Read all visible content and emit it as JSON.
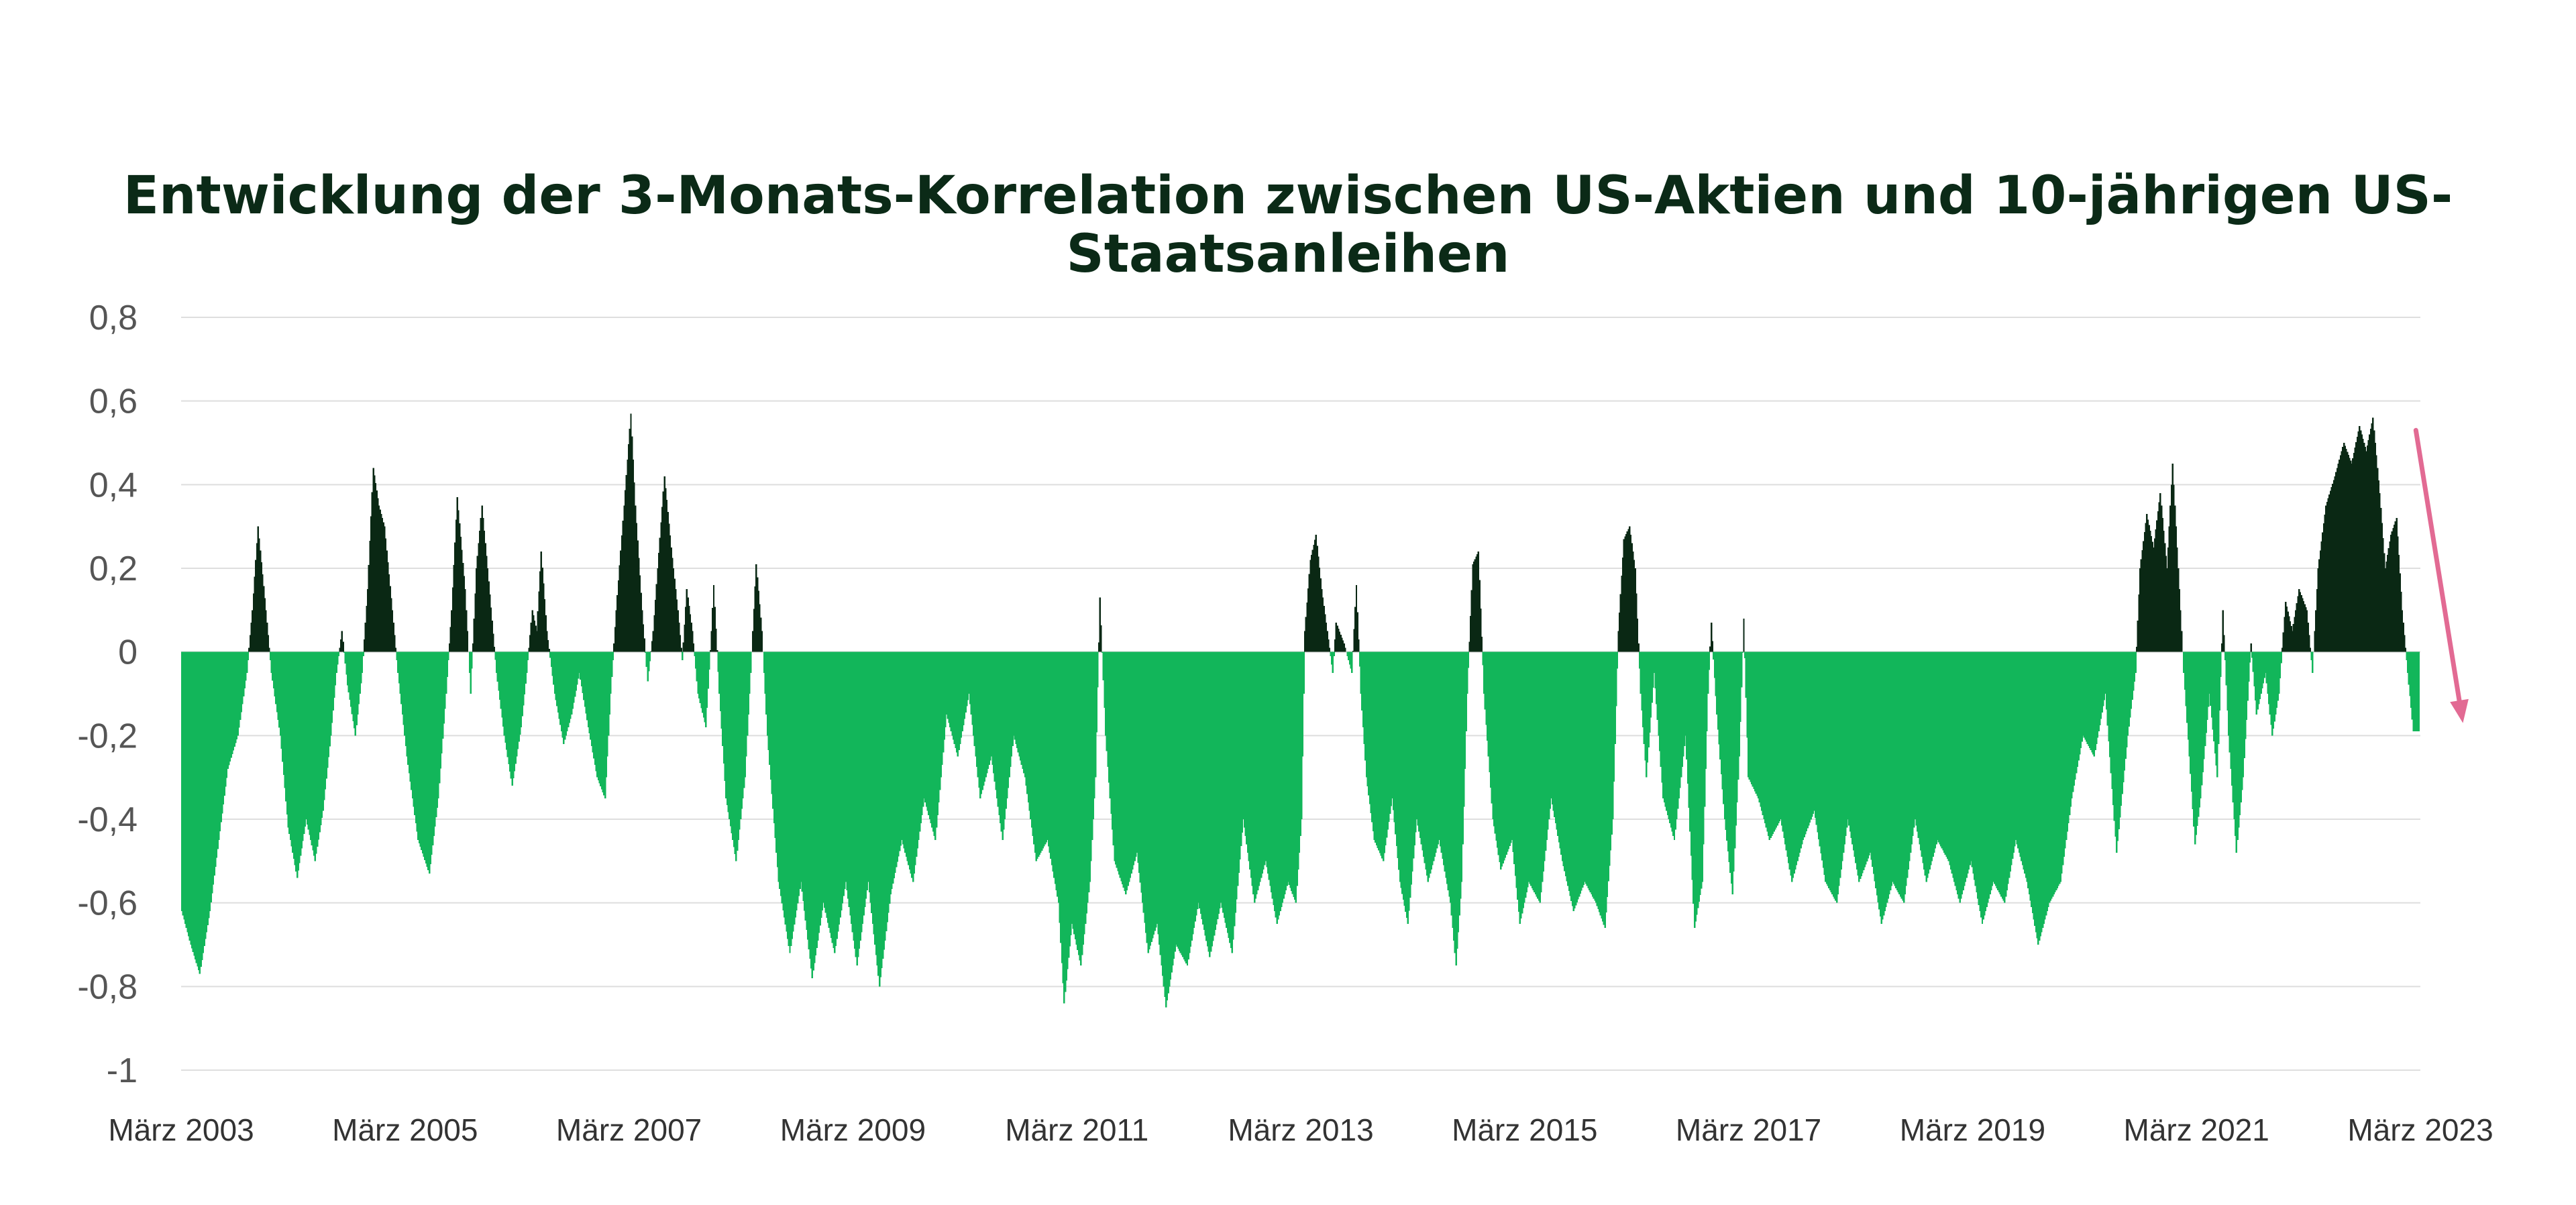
{
  "chart_data": {
    "type": "bar",
    "title_lines": [
      "Entwicklung der 3-Monats-Korrelation zwischen US-Aktien und 10-jährigen US-",
      "Staatsanleihen"
    ],
    "xlabel": "",
    "ylabel": "",
    "ylim": [
      -1,
      0.8
    ],
    "yticks": [
      0.8,
      0.6,
      0.4,
      0.2,
      0,
      -0.2,
      -0.4,
      -0.6,
      -0.8,
      -1
    ],
    "ytick_labels": [
      "0,8",
      "0,6",
      "0,4",
      "0,2",
      "0",
      "-0,2",
      "-0,4",
      "-0,6",
      "-0,8",
      "-1"
    ],
    "x_range": [
      2003.17,
      2023.17
    ],
    "xticks": [
      2003.17,
      2005.17,
      2007.17,
      2009.17,
      2011.17,
      2013.17,
      2015.17,
      2017.17,
      2019.17,
      2021.17,
      2023.17
    ],
    "xtick_labels": [
      "März 2003",
      "März 2005",
      "März 2007",
      "März 2009",
      "März 2011",
      "März 2013",
      "März 2015",
      "März 2017",
      "März 2019",
      "März 2021",
      "März 2023"
    ],
    "grid": true,
    "colors": {
      "positive": "#0a2814",
      "negative": "#12b65a",
      "arrow": "#e26a93"
    },
    "arrow": {
      "from": [
        2023.13,
        0.53
      ],
      "to": [
        2023.55,
        -0.17
      ]
    },
    "series": [
      {
        "points": [
          [
            2003.17,
            -0.62
          ],
          [
            2003.25,
            -0.7
          ],
          [
            2003.33,
            -0.77
          ],
          [
            2003.42,
            -0.62
          ],
          [
            2003.5,
            -0.45
          ],
          [
            2003.58,
            -0.28
          ],
          [
            2003.67,
            -0.2
          ],
          [
            2003.75,
            -0.05
          ],
          [
            2003.8,
            0.1
          ],
          [
            2003.85,
            0.3
          ],
          [
            2003.92,
            0.1
          ],
          [
            2003.97,
            -0.05
          ],
          [
            2004.05,
            -0.2
          ],
          [
            2004.12,
            -0.42
          ],
          [
            2004.2,
            -0.54
          ],
          [
            2004.28,
            -0.4
          ],
          [
            2004.36,
            -0.5
          ],
          [
            2004.43,
            -0.38
          ],
          [
            2004.5,
            -0.2
          ],
          [
            2004.55,
            -0.05
          ],
          [
            2004.6,
            0.05
          ],
          [
            2004.65,
            -0.08
          ],
          [
            2004.72,
            -0.2
          ],
          [
            2004.78,
            -0.05
          ],
          [
            2004.83,
            0.15
          ],
          [
            2004.88,
            0.44
          ],
          [
            2004.93,
            0.35
          ],
          [
            2004.98,
            0.3
          ],
          [
            2005.05,
            0.1
          ],
          [
            2005.1,
            -0.05
          ],
          [
            2005.18,
            -0.25
          ],
          [
            2005.28,
            -0.45
          ],
          [
            2005.38,
            -0.53
          ],
          [
            2005.46,
            -0.35
          ],
          [
            2005.53,
            -0.1
          ],
          [
            2005.58,
            0.1
          ],
          [
            2005.63,
            0.37
          ],
          [
            2005.7,
            0.15
          ],
          [
            2005.75,
            -0.1
          ],
          [
            2005.8,
            0.2
          ],
          [
            2005.85,
            0.35
          ],
          [
            2005.9,
            0.2
          ],
          [
            2005.98,
            -0.05
          ],
          [
            2006.05,
            -0.2
          ],
          [
            2006.12,
            -0.32
          ],
          [
            2006.2,
            -0.18
          ],
          [
            2006.25,
            -0.05
          ],
          [
            2006.3,
            0.1
          ],
          [
            2006.34,
            0.05
          ],
          [
            2006.38,
            0.24
          ],
          [
            2006.43,
            0.05
          ],
          [
            2006.5,
            -0.1
          ],
          [
            2006.58,
            -0.22
          ],
          [
            2006.65,
            -0.15
          ],
          [
            2006.72,
            -0.05
          ],
          [
            2006.8,
            -0.18
          ],
          [
            2006.88,
            -0.3
          ],
          [
            2006.95,
            -0.35
          ],
          [
            2007.0,
            -0.1
          ],
          [
            2007.05,
            0.1
          ],
          [
            2007.12,
            0.35
          ],
          [
            2007.18,
            0.57
          ],
          [
            2007.22,
            0.35
          ],
          [
            2007.28,
            0.1
          ],
          [
            2007.33,
            -0.07
          ],
          [
            2007.38,
            0.05
          ],
          [
            2007.42,
            0.2
          ],
          [
            2007.48,
            0.42
          ],
          [
            2007.54,
            0.25
          ],
          [
            2007.6,
            0.1
          ],
          [
            2007.64,
            -0.02
          ],
          [
            2007.68,
            0.15
          ],
          [
            2007.73,
            0.05
          ],
          [
            2007.78,
            -0.1
          ],
          [
            2007.85,
            -0.18
          ],
          [
            2007.9,
            0.05
          ],
          [
            2007.92,
            0.16
          ],
          [
            2007.97,
            -0.1
          ],
          [
            2008.03,
            -0.35
          ],
          [
            2008.12,
            -0.5
          ],
          [
            2008.2,
            -0.3
          ],
          [
            2008.27,
            0.05
          ],
          [
            2008.3,
            0.21
          ],
          [
            2008.35,
            0.05
          ],
          [
            2008.4,
            -0.2
          ],
          [
            2008.5,
            -0.55
          ],
          [
            2008.6,
            -0.72
          ],
          [
            2008.7,
            -0.55
          ],
          [
            2008.8,
            -0.78
          ],
          [
            2008.9,
            -0.6
          ],
          [
            2009.0,
            -0.72
          ],
          [
            2009.1,
            -0.55
          ],
          [
            2009.2,
            -0.75
          ],
          [
            2009.3,
            -0.55
          ],
          [
            2009.4,
            -0.8
          ],
          [
            2009.5,
            -0.58
          ],
          [
            2009.6,
            -0.45
          ],
          [
            2009.7,
            -0.55
          ],
          [
            2009.8,
            -0.35
          ],
          [
            2009.9,
            -0.45
          ],
          [
            2010.0,
            -0.15
          ],
          [
            2010.1,
            -0.25
          ],
          [
            2010.2,
            -0.1
          ],
          [
            2010.3,
            -0.35
          ],
          [
            2010.4,
            -0.25
          ],
          [
            2010.5,
            -0.45
          ],
          [
            2010.6,
            -0.2
          ],
          [
            2010.7,
            -0.3
          ],
          [
            2010.8,
            -0.5
          ],
          [
            2010.9,
            -0.45
          ],
          [
            2011.0,
            -0.6
          ],
          [
            2011.05,
            -0.84
          ],
          [
            2011.12,
            -0.65
          ],
          [
            2011.2,
            -0.75
          ],
          [
            2011.28,
            -0.55
          ],
          [
            2011.33,
            -0.3
          ],
          [
            2011.37,
            0.13
          ],
          [
            2011.42,
            -0.2
          ],
          [
            2011.5,
            -0.5
          ],
          [
            2011.6,
            -0.58
          ],
          [
            2011.7,
            -0.48
          ],
          [
            2011.8,
            -0.72
          ],
          [
            2011.88,
            -0.65
          ],
          [
            2011.96,
            -0.85
          ],
          [
            2012.05,
            -0.7
          ],
          [
            2012.15,
            -0.75
          ],
          [
            2012.25,
            -0.6
          ],
          [
            2012.35,
            -0.73
          ],
          [
            2012.45,
            -0.6
          ],
          [
            2012.55,
            -0.72
          ],
          [
            2012.65,
            -0.4
          ],
          [
            2012.75,
            -0.6
          ],
          [
            2012.85,
            -0.5
          ],
          [
            2012.95,
            -0.65
          ],
          [
            2013.05,
            -0.55
          ],
          [
            2013.12,
            -0.6
          ],
          [
            2013.17,
            -0.4
          ],
          [
            2013.2,
            0.05
          ],
          [
            2013.25,
            0.22
          ],
          [
            2013.3,
            0.28
          ],
          [
            2013.35,
            0.15
          ],
          [
            2013.4,
            0.05
          ],
          [
            2013.45,
            -0.05
          ],
          [
            2013.48,
            0.07
          ],
          [
            2013.55,
            0.02
          ],
          [
            2013.62,
            -0.05
          ],
          [
            2013.66,
            0.16
          ],
          [
            2013.7,
            -0.1
          ],
          [
            2013.75,
            -0.3
          ],
          [
            2013.82,
            -0.45
          ],
          [
            2013.9,
            -0.5
          ],
          [
            2013.98,
            -0.35
          ],
          [
            2014.05,
            -0.55
          ],
          [
            2014.12,
            -0.65
          ],
          [
            2014.2,
            -0.4
          ],
          [
            2014.3,
            -0.55
          ],
          [
            2014.4,
            -0.45
          ],
          [
            2014.5,
            -0.6
          ],
          [
            2014.55,
            -0.75
          ],
          [
            2014.6,
            -0.55
          ],
          [
            2014.65,
            -0.1
          ],
          [
            2014.7,
            0.21
          ],
          [
            2014.75,
            0.24
          ],
          [
            2014.8,
            -0.1
          ],
          [
            2014.88,
            -0.4
          ],
          [
            2014.95,
            -0.52
          ],
          [
            2015.05,
            -0.45
          ],
          [
            2015.12,
            -0.65
          ],
          [
            2015.2,
            -0.55
          ],
          [
            2015.3,
            -0.6
          ],
          [
            2015.4,
            -0.35
          ],
          [
            2015.5,
            -0.5
          ],
          [
            2015.6,
            -0.62
          ],
          [
            2015.7,
            -0.55
          ],
          [
            2015.8,
            -0.6
          ],
          [
            2015.88,
            -0.66
          ],
          [
            2015.95,
            -0.4
          ],
          [
            2016.0,
            0.05
          ],
          [
            2016.05,
            0.27
          ],
          [
            2016.1,
            0.3
          ],
          [
            2016.15,
            0.2
          ],
          [
            2016.2,
            -0.1
          ],
          [
            2016.25,
            -0.3
          ],
          [
            2016.32,
            -0.05
          ],
          [
            2016.4,
            -0.35
          ],
          [
            2016.5,
            -0.45
          ],
          [
            2016.6,
            -0.2
          ],
          [
            2016.68,
            -0.66
          ],
          [
            2016.75,
            -0.55
          ],
          [
            2016.8,
            -0.1
          ],
          [
            2016.83,
            0.07
          ],
          [
            2016.88,
            -0.15
          ],
          [
            2016.95,
            -0.4
          ],
          [
            2017.02,
            -0.58
          ],
          [
            2017.08,
            -0.25
          ],
          [
            2017.12,
            0.08
          ],
          [
            2017.16,
            -0.3
          ],
          [
            2017.25,
            -0.35
          ],
          [
            2017.35,
            -0.45
          ],
          [
            2017.45,
            -0.4
          ],
          [
            2017.55,
            -0.55
          ],
          [
            2017.65,
            -0.45
          ],
          [
            2017.75,
            -0.38
          ],
          [
            2017.85,
            -0.55
          ],
          [
            2017.95,
            -0.6
          ],
          [
            2018.05,
            -0.4
          ],
          [
            2018.15,
            -0.55
          ],
          [
            2018.25,
            -0.48
          ],
          [
            2018.35,
            -0.65
          ],
          [
            2018.45,
            -0.55
          ],
          [
            2018.55,
            -0.6
          ],
          [
            2018.65,
            -0.4
          ],
          [
            2018.75,
            -0.55
          ],
          [
            2018.85,
            -0.45
          ],
          [
            2018.95,
            -0.5
          ],
          [
            2019.05,
            -0.6
          ],
          [
            2019.15,
            -0.5
          ],
          [
            2019.25,
            -0.65
          ],
          [
            2019.35,
            -0.55
          ],
          [
            2019.45,
            -0.6
          ],
          [
            2019.55,
            -0.45
          ],
          [
            2019.65,
            -0.55
          ],
          [
            2019.75,
            -0.7
          ],
          [
            2019.85,
            -0.6
          ],
          [
            2019.95,
            -0.55
          ],
          [
            2020.05,
            -0.35
          ],
          [
            2020.15,
            -0.2
          ],
          [
            2020.25,
            -0.25
          ],
          [
            2020.35,
            -0.1
          ],
          [
            2020.45,
            -0.48
          ],
          [
            2020.55,
            -0.2
          ],
          [
            2020.62,
            -0.05
          ],
          [
            2020.66,
            0.2
          ],
          [
            2020.72,
            0.33
          ],
          [
            2020.78,
            0.25
          ],
          [
            2020.84,
            0.38
          ],
          [
            2020.9,
            0.2
          ],
          [
            2020.95,
            0.45
          ],
          [
            2021.0,
            0.2
          ],
          [
            2021.05,
            -0.05
          ],
          [
            2021.1,
            -0.25
          ],
          [
            2021.15,
            -0.46
          ],
          [
            2021.2,
            -0.35
          ],
          [
            2021.28,
            -0.1
          ],
          [
            2021.35,
            -0.3
          ],
          [
            2021.4,
            0.1
          ],
          [
            2021.45,
            -0.2
          ],
          [
            2021.52,
            -0.48
          ],
          [
            2021.58,
            -0.3
          ],
          [
            2021.65,
            0.02
          ],
          [
            2021.7,
            -0.15
          ],
          [
            2021.78,
            -0.05
          ],
          [
            2021.84,
            -0.2
          ],
          [
            2021.9,
            -0.1
          ],
          [
            2021.96,
            0.12
          ],
          [
            2022.02,
            0.05
          ],
          [
            2022.08,
            0.15
          ],
          [
            2022.15,
            0.1
          ],
          [
            2022.2,
            -0.05
          ],
          [
            2022.25,
            0.2
          ],
          [
            2022.32,
            0.35
          ],
          [
            2022.4,
            0.42
          ],
          [
            2022.48,
            0.5
          ],
          [
            2022.55,
            0.45
          ],
          [
            2022.62,
            0.54
          ],
          [
            2022.68,
            0.48
          ],
          [
            2022.74,
            0.56
          ],
          [
            2022.8,
            0.38
          ],
          [
            2022.85,
            0.2
          ],
          [
            2022.9,
            0.28
          ],
          [
            2022.95,
            0.32
          ],
          [
            2023.0,
            0.1
          ],
          [
            2023.05,
            -0.05
          ],
          [
            2023.1,
            -0.19
          ],
          [
            2023.15,
            -0.19
          ]
        ]
      }
    ]
  }
}
